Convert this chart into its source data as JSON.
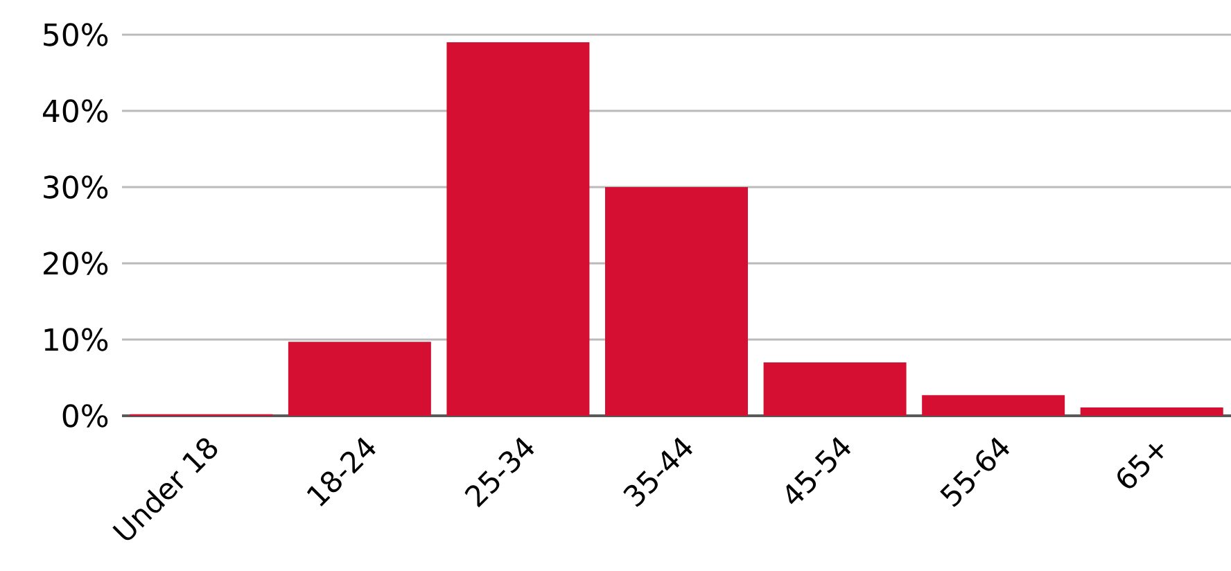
{
  "chart_data": {
    "type": "bar",
    "categories": [
      "Under 18",
      "18-24",
      "25-34",
      "35-44",
      "45-54",
      "55-64",
      "65+"
    ],
    "values": [
      0.2,
      9.7,
      49.0,
      30.0,
      7.0,
      2.7,
      1.1
    ],
    "color": "#d50f32",
    "ylim": [
      0,
      50
    ],
    "yticks": [
      {
        "value": 0,
        "label": "0%"
      },
      {
        "value": 10,
        "label": "10%"
      },
      {
        "value": 20,
        "label": "20%"
      },
      {
        "value": 30,
        "label": "30%"
      },
      {
        "value": 40,
        "label": "40%"
      },
      {
        "value": 50,
        "label": "50%"
      }
    ],
    "grid": "y"
  }
}
